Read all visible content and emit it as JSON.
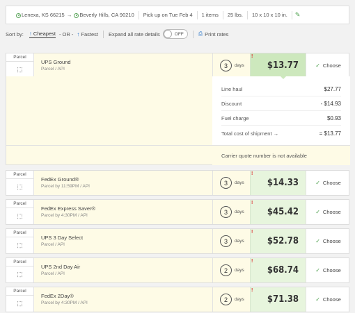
{
  "summary": {
    "origin": "Lenexa, KS 66215",
    "destination": "Beverly Hills, CA 90210",
    "pickup": "Pick up on Tue Feb 4",
    "items": "1 items",
    "weight": "25 lbs.",
    "dimensions": "10 x 10 x 10 in."
  },
  "sortbar": {
    "label": "Sort by:",
    "cheapest": "Cheapest",
    "or": "- OR -",
    "fastest": "Fastest",
    "expand_label": "Expand all rate details",
    "toggle_state": "OFF",
    "print": "Print rates"
  },
  "days_label": "days",
  "choose_label": "Choose",
  "warn_symbol": "!",
  "rates": [
    {
      "type": "Parcel",
      "name": "UPS Ground",
      "sub": "Parcel / API",
      "days": "3",
      "price": "$13.77"
    },
    {
      "type": "Parcel",
      "name": "FedEx Ground®",
      "sub": "Parcel by 11:59PM / API",
      "days": "3",
      "price": "$14.33"
    },
    {
      "type": "Parcel",
      "name": "FedEx Express Saver®",
      "sub": "Parcel by 4:30PM / API",
      "days": "3",
      "price": "$45.42"
    },
    {
      "type": "Parcel",
      "name": "UPS 3 Day Select",
      "sub": "Parcel / API",
      "days": "3",
      "price": "$52.78"
    },
    {
      "type": "Parcel",
      "name": "UPS 2nd Day Air",
      "sub": "Parcel / API",
      "days": "2",
      "price": "$68.74"
    },
    {
      "type": "Parcel",
      "name": "FedEx 2Day®",
      "sub": "Parcel by 4:30PM / API",
      "days": "2",
      "price": "$71.38"
    }
  ],
  "detail": {
    "line_haul_label": "Line haul",
    "line_haul": "$27.77",
    "discount_label": "Discount",
    "discount": "- $14.93",
    "fuel_label": "Fuel charge",
    "fuel": "$0.93",
    "total_label": "Total cost of shipment",
    "total": "= $13.77",
    "carrier_note": "Carrier quote number is not available"
  },
  "colors": {
    "accent": "#2c77c9",
    "price_bg": "#e7f5dd",
    "row_bg": "#fefbe6",
    "check": "#4a9e4a"
  }
}
